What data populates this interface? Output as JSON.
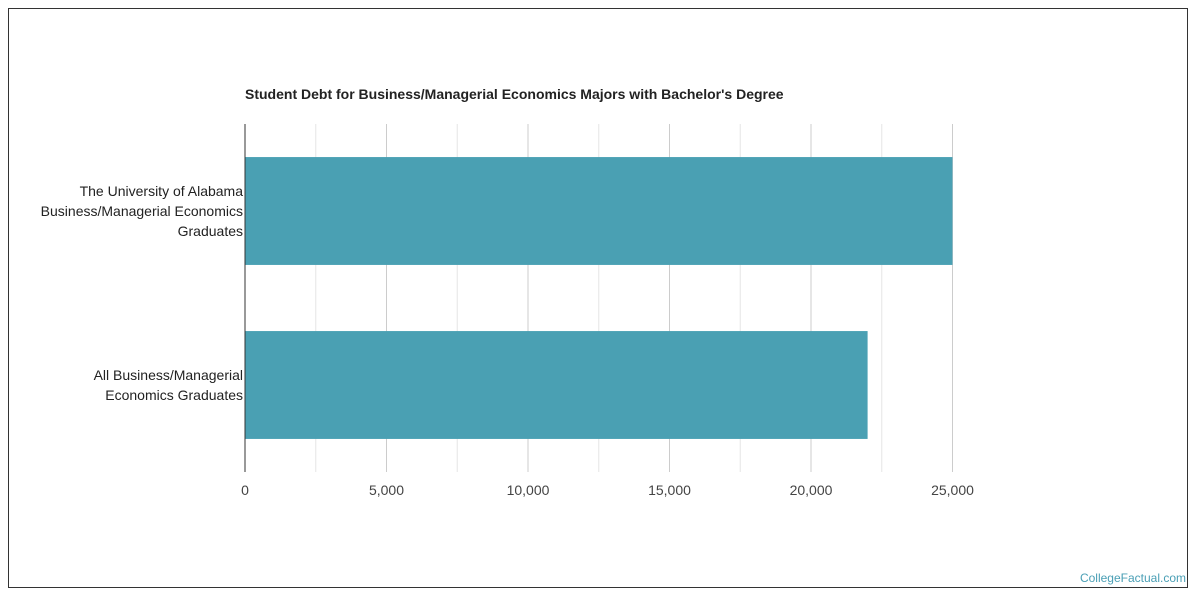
{
  "chart_data": {
    "type": "bar",
    "orientation": "horizontal",
    "title": "Student Debt for Business/Managerial Economics Majors with Bachelor's Degree",
    "categories": [
      [
        "The University of Alabama",
        "Business/Managerial Economics",
        "Graduates"
      ],
      [
        "All Business/Managerial",
        "Economics Graduates"
      ]
    ],
    "values": [
      25000,
      22000
    ],
    "xlim": [
      0,
      30000
    ],
    "xticks": [
      0,
      5000,
      10000,
      15000,
      20000,
      25000
    ],
    "xtick_labels": [
      "0",
      "5,000",
      "10,000",
      "15,000",
      "20,000",
      "25,000"
    ],
    "grid": true,
    "bar_color": "#4aa0b3"
  },
  "watermark": "CollegeFactual.com"
}
